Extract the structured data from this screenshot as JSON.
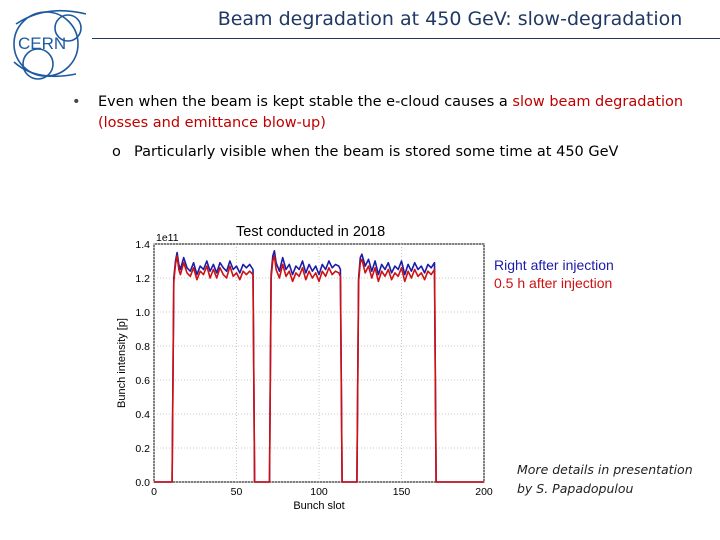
{
  "header": {
    "title": "Beam degradation at 450 GeV: slow-degradation",
    "logo_text": "CERN",
    "title_color": "#1f3864"
  },
  "bullets": {
    "main": {
      "marker": "•",
      "text_before": "Even when the beam is kept stable the e-cloud causes a ",
      "highlight": "slow beam degradation (losses and emittance blow-up)",
      "highlight_color": "#c00000"
    },
    "sub": {
      "marker": "o",
      "text": "Particularly visible when the beam is stored some time at 450 GeV"
    }
  },
  "chart_data": {
    "type": "line",
    "title": "Test conducted in 2018",
    "xlabel": "Bunch slot",
    "ylabel": "Bunch intensity [p]",
    "y_multiplier": "1e11",
    "xlim": [
      0,
      200
    ],
    "ylim": [
      0,
      1.4
    ],
    "xticks": [
      "0",
      "50",
      "100",
      "150",
      "200"
    ],
    "yticks": [
      "0.0",
      "0.2",
      "0.4",
      "0.6",
      "0.8",
      "1.0",
      "1.2",
      "1.4"
    ],
    "grid": true,
    "legend_placement": "outside-right",
    "trains": [
      [
        12,
        60
      ],
      [
        71,
        113
      ],
      [
        124,
        170
      ]
    ],
    "series": [
      {
        "name": "Right after injection",
        "color": "#1c1ca8",
        "values": [
          [
            0,
            0
          ],
          [
            11,
            0
          ],
          [
            12,
            1.2
          ],
          [
            13,
            1.3
          ],
          [
            14,
            1.35
          ],
          [
            15,
            1.28
          ],
          [
            16,
            1.25
          ],
          [
            18,
            1.32
          ],
          [
            20,
            1.26
          ],
          [
            22,
            1.24
          ],
          [
            24,
            1.29
          ],
          [
            26,
            1.22
          ],
          [
            28,
            1.27
          ],
          [
            30,
            1.25
          ],
          [
            32,
            1.3
          ],
          [
            34,
            1.24
          ],
          [
            36,
            1.28
          ],
          [
            38,
            1.23
          ],
          [
            40,
            1.29
          ],
          [
            42,
            1.26
          ],
          [
            44,
            1.24
          ],
          [
            46,
            1.3
          ],
          [
            48,
            1.25
          ],
          [
            50,
            1.27
          ],
          [
            52,
            1.23
          ],
          [
            54,
            1.28
          ],
          [
            56,
            1.26
          ],
          [
            58,
            1.28
          ],
          [
            60,
            1.25
          ],
          [
            61,
            0
          ],
          [
            70,
            0
          ],
          [
            71,
            1.22
          ],
          [
            72,
            1.33
          ],
          [
            73,
            1.36
          ],
          [
            74,
            1.29
          ],
          [
            76,
            1.24
          ],
          [
            78,
            1.32
          ],
          [
            80,
            1.25
          ],
          [
            82,
            1.28
          ],
          [
            84,
            1.22
          ],
          [
            86,
            1.27
          ],
          [
            88,
            1.25
          ],
          [
            90,
            1.3
          ],
          [
            92,
            1.23
          ],
          [
            94,
            1.28
          ],
          [
            96,
            1.24
          ],
          [
            98,
            1.27
          ],
          [
            100,
            1.22
          ],
          [
            102,
            1.28
          ],
          [
            104,
            1.25
          ],
          [
            106,
            1.3
          ],
          [
            108,
            1.26
          ],
          [
            110,
            1.28
          ],
          [
            112,
            1.27
          ],
          [
            113,
            1.25
          ],
          [
            114,
            0
          ],
          [
            123,
            0
          ],
          [
            124,
            1.2
          ],
          [
            125,
            1.32
          ],
          [
            126,
            1.34
          ],
          [
            128,
            1.27
          ],
          [
            130,
            1.31
          ],
          [
            132,
            1.24
          ],
          [
            134,
            1.3
          ],
          [
            136,
            1.22
          ],
          [
            138,
            1.28
          ],
          [
            140,
            1.25
          ],
          [
            142,
            1.29
          ],
          [
            144,
            1.23
          ],
          [
            146,
            1.27
          ],
          [
            148,
            1.25
          ],
          [
            150,
            1.3
          ],
          [
            152,
            1.22
          ],
          [
            154,
            1.28
          ],
          [
            156,
            1.24
          ],
          [
            158,
            1.29
          ],
          [
            160,
            1.25
          ],
          [
            162,
            1.27
          ],
          [
            164,
            1.23
          ],
          [
            166,
            1.28
          ],
          [
            168,
            1.26
          ],
          [
            170,
            1.29
          ],
          [
            171,
            0
          ],
          [
            200,
            0
          ]
        ]
      },
      {
        "name": "0.5 h after injection",
        "color": "#d01010",
        "values": [
          [
            0,
            0
          ],
          [
            11,
            0
          ],
          [
            12,
            1.18
          ],
          [
            13,
            1.28
          ],
          [
            14,
            1.33
          ],
          [
            15,
            1.25
          ],
          [
            16,
            1.22
          ],
          [
            18,
            1.29
          ],
          [
            20,
            1.23
          ],
          [
            22,
            1.21
          ],
          [
            24,
            1.26
          ],
          [
            26,
            1.19
          ],
          [
            28,
            1.24
          ],
          [
            30,
            1.22
          ],
          [
            32,
            1.27
          ],
          [
            34,
            1.2
          ],
          [
            36,
            1.25
          ],
          [
            38,
            1.2
          ],
          [
            40,
            1.26
          ],
          [
            42,
            1.22
          ],
          [
            44,
            1.2
          ],
          [
            46,
            1.27
          ],
          [
            48,
            1.21
          ],
          [
            50,
            1.23
          ],
          [
            52,
            1.19
          ],
          [
            54,
            1.24
          ],
          [
            56,
            1.22
          ],
          [
            58,
            1.24
          ],
          [
            60,
            1.22
          ],
          [
            61,
            0
          ],
          [
            70,
            0
          ],
          [
            71,
            1.2
          ],
          [
            72,
            1.3
          ],
          [
            73,
            1.33
          ],
          [
            74,
            1.25
          ],
          [
            76,
            1.2
          ],
          [
            78,
            1.28
          ],
          [
            80,
            1.21
          ],
          [
            82,
            1.24
          ],
          [
            84,
            1.18
          ],
          [
            86,
            1.23
          ],
          [
            88,
            1.21
          ],
          [
            90,
            1.26
          ],
          [
            92,
            1.19
          ],
          [
            94,
            1.24
          ],
          [
            96,
            1.2
          ],
          [
            98,
            1.23
          ],
          [
            100,
            1.18
          ],
          [
            102,
            1.24
          ],
          [
            104,
            1.21
          ],
          [
            106,
            1.26
          ],
          [
            108,
            1.22
          ],
          [
            110,
            1.24
          ],
          [
            112,
            1.23
          ],
          [
            113,
            1.21
          ],
          [
            114,
            0
          ],
          [
            123,
            0
          ],
          [
            124,
            1.18
          ],
          [
            125,
            1.29
          ],
          [
            126,
            1.31
          ],
          [
            128,
            1.23
          ],
          [
            130,
            1.27
          ],
          [
            132,
            1.2
          ],
          [
            134,
            1.26
          ],
          [
            136,
            1.18
          ],
          [
            138,
            1.24
          ],
          [
            140,
            1.21
          ],
          [
            142,
            1.25
          ],
          [
            144,
            1.19
          ],
          [
            146,
            1.23
          ],
          [
            148,
            1.21
          ],
          [
            150,
            1.26
          ],
          [
            152,
            1.18
          ],
          [
            154,
            1.24
          ],
          [
            156,
            1.2
          ],
          [
            158,
            1.25
          ],
          [
            160,
            1.21
          ],
          [
            162,
            1.23
          ],
          [
            164,
            1.19
          ],
          [
            166,
            1.24
          ],
          [
            168,
            1.22
          ],
          [
            170,
            1.25
          ],
          [
            171,
            0
          ],
          [
            200,
            0
          ]
        ]
      }
    ]
  },
  "footnote": {
    "line1": "More details in presentation",
    "line2": "by S. Papadopulou"
  }
}
